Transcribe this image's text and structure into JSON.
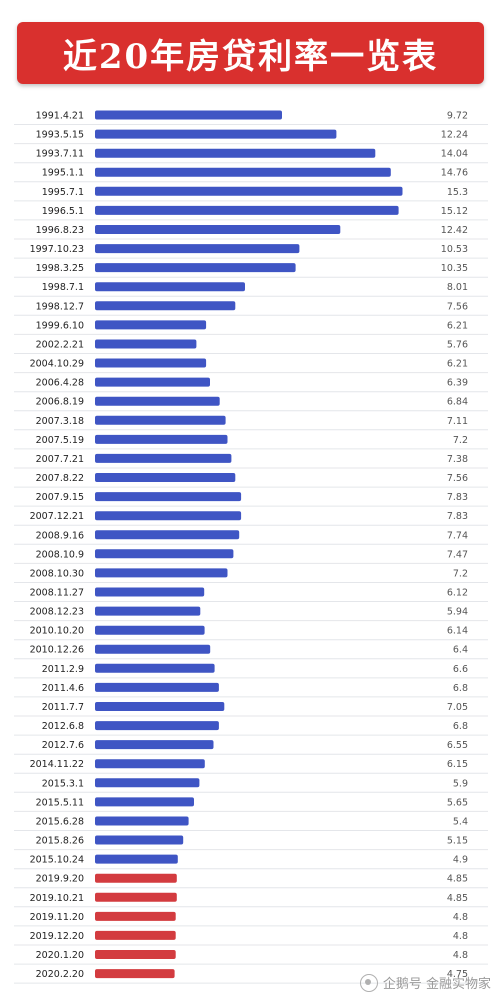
{
  "title": "近20年房贷利率一览表",
  "watermark": "企鹅号 金融实物家",
  "colors": {
    "banner": "#d9302e",
    "blue": "#3f55c4",
    "red": "#d33b3f",
    "gridline": "#e4e6ea",
    "label": "#222222",
    "value": "#555555"
  },
  "chart_data": {
    "type": "bar",
    "orientation": "horizontal",
    "title": "近20年房贷利率一览表",
    "xlim": [
      0,
      16
    ],
    "categories": [
      "1991.4.21",
      "1993.5.15",
      "1993.7.11",
      "1995.1.1",
      "1995.7.1",
      "1996.5.1",
      "1996.8.23",
      "1997.10.23",
      "1998.3.25",
      "1998.7.1",
      "1998.12.7",
      "1999.6.10",
      "2002.2.21",
      "2004.10.29",
      "2006.4.28",
      "2006.8.19",
      "2007.3.18",
      "2007.5.19",
      "2007.7.21",
      "2007.8.22",
      "2007.9.15",
      "2007.12.21",
      "2008.9.16",
      "2008.10.9",
      "2008.10.30",
      "2008.11.27",
      "2008.12.23",
      "2010.10.20",
      "2010.12.26",
      "2011.2.9",
      "2011.4.6",
      "2011.7.7",
      "2012.6.8",
      "2012.7.6",
      "2014.11.22",
      "2015.3.1",
      "2015.5.11",
      "2015.6.28",
      "2015.8.26",
      "2015.10.24",
      "2019.9.20",
      "2019.10.21",
      "2019.11.20",
      "2019.12.20",
      "2020.1.20",
      "2020.2.20"
    ],
    "values": [
      9.72,
      12.24,
      14.04,
      14.76,
      15.3,
      15.12,
      12.42,
      10.53,
      10.35,
      8.01,
      7.56,
      6.21,
      5.76,
      6.21,
      6.39,
      6.84,
      7.11,
      7.2,
      7.38,
      7.56,
      7.83,
      7.83,
      7.74,
      7.47,
      7.2,
      6.12,
      5.94,
      6.14,
      6.4,
      6.6,
      6.8,
      7.05,
      6.8,
      6.55,
      6.15,
      5.9,
      5.65,
      5.4,
      5.15,
      4.9,
      4.85,
      4.85,
      4.8,
      4.8,
      4.8,
      4.75
    ],
    "value_labels": [
      "9.72",
      "12.24",
      "14.04",
      "14.76",
      "15.3",
      "15.12",
      "12.42",
      "10.53",
      "10.35",
      "8.01",
      "7.56",
      "6.21",
      "5.76",
      "6.21",
      "6.39",
      "6.84",
      "7.11",
      "7.2",
      "7.38",
      "7.56",
      "7.83",
      "7.83",
      "7.74",
      "7.47",
      "7.2",
      "6.12",
      "5.94",
      "6.14",
      "6.4",
      "6.6",
      "6.8",
      "7.05",
      "6.8",
      "6.55",
      "6.15",
      "5.9",
      "5.65",
      "5.4",
      "5.15",
      "4.9",
      "4.85",
      "4.85",
      "4.8",
      "4.8",
      "4.8",
      "4.75"
    ],
    "highlight_from_index": 40,
    "grid": true
  }
}
